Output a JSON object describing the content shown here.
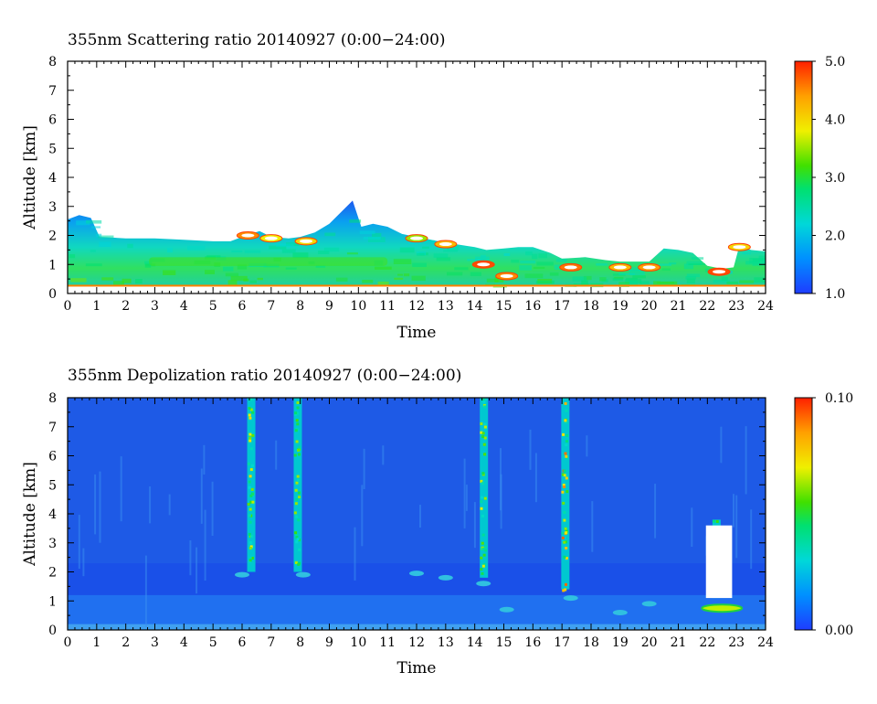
{
  "chart_data": [
    {
      "type": "heatmap",
      "title": "355nm Scattering ratio  20140927 (0:00−24:00)",
      "xlabel": "Time",
      "ylabel": "Altitude [km]",
      "xlim": [
        0,
        24
      ],
      "ylim": [
        0,
        8
      ],
      "x_ticks": [
        "0",
        "1",
        "2",
        "3",
        "4",
        "5",
        "6",
        "7",
        "8",
        "9",
        "10",
        "11",
        "12",
        "13",
        "14",
        "15",
        "16",
        "17",
        "18",
        "19",
        "20",
        "21",
        "22",
        "23",
        "24"
      ],
      "y_ticks": [
        "0",
        "1",
        "2",
        "3",
        "4",
        "5",
        "6",
        "7",
        "8"
      ],
      "colorbar": {
        "range": [
          1.0,
          5.0
        ],
        "ticks": [
          "1.0",
          "2.0",
          "3.0",
          "4.0",
          "5.0"
        ]
      },
      "colors": {
        "low": "#1e3cff",
        "mid": "#00e000",
        "high": "#ff2000"
      },
      "top_of_signal_km": [
        [
          0.0,
          2.55
        ],
        [
          0.4,
          2.7
        ],
        [
          0.8,
          2.6
        ],
        [
          1.1,
          1.95
        ],
        [
          2.0,
          1.9
        ],
        [
          3.0,
          1.9
        ],
        [
          4.0,
          1.85
        ],
        [
          5.0,
          1.8
        ],
        [
          5.6,
          1.8
        ],
        [
          6.0,
          1.95
        ],
        [
          6.6,
          2.15
        ],
        [
          7.0,
          1.95
        ],
        [
          7.6,
          1.9
        ],
        [
          8.0,
          1.95
        ],
        [
          8.5,
          2.1
        ],
        [
          9.0,
          2.4
        ],
        [
          9.4,
          2.8
        ],
        [
          9.8,
          3.2
        ],
        [
          10.1,
          2.3
        ],
        [
          10.5,
          2.4
        ],
        [
          11.0,
          2.3
        ],
        [
          11.5,
          2.05
        ],
        [
          12.0,
          1.95
        ],
        [
          13.0,
          1.75
        ],
        [
          14.0,
          1.6
        ],
        [
          14.4,
          1.5
        ],
        [
          15.0,
          1.55
        ],
        [
          15.5,
          1.6
        ],
        [
          16.0,
          1.6
        ],
        [
          16.6,
          1.4
        ],
        [
          17.0,
          1.2
        ],
        [
          17.8,
          1.25
        ],
        [
          18.5,
          1.15
        ],
        [
          19.0,
          1.1
        ],
        [
          20.0,
          1.1
        ],
        [
          20.5,
          1.55
        ],
        [
          21.0,
          1.5
        ],
        [
          21.5,
          1.4
        ],
        [
          22.0,
          0.95
        ],
        [
          22.5,
          0.85
        ],
        [
          22.9,
          0.9
        ],
        [
          23.1,
          1.65
        ],
        [
          23.5,
          1.5
        ],
        [
          24.0,
          1.45
        ]
      ],
      "features": [
        {
          "t": 6.2,
          "alt": 2.0,
          "value": 4.5
        },
        {
          "t": 7.0,
          "alt": 1.9,
          "value": 3.8
        },
        {
          "t": 8.2,
          "alt": 1.8,
          "value": 4.0
        },
        {
          "t": 12.0,
          "alt": 1.9,
          "value": 3.5
        },
        {
          "t": 13.0,
          "alt": 1.7,
          "value": 4.2
        },
        {
          "t": 14.3,
          "alt": 1.0,
          "value": 4.8
        },
        {
          "t": 15.1,
          "alt": 0.6,
          "value": 4.5
        },
        {
          "t": 17.3,
          "alt": 0.9,
          "value": 4.6
        },
        {
          "t": 19.0,
          "alt": 0.9,
          "value": 4.2
        },
        {
          "t": 20.0,
          "alt": 0.9,
          "value": 4.4
        },
        {
          "t": 22.4,
          "alt": 0.75,
          "value": 4.8
        },
        {
          "t": 23.1,
          "alt": 1.6,
          "value": 4.0
        }
      ]
    },
    {
      "type": "heatmap",
      "title": "355nm Depolization ratio  20140927 (0:00−24:00)",
      "xlabel": "Time",
      "ylabel": "Altitude [km]",
      "xlim": [
        0,
        24
      ],
      "ylim": [
        0,
        8
      ],
      "x_ticks": [
        "0",
        "1",
        "2",
        "3",
        "4",
        "5",
        "6",
        "7",
        "8",
        "9",
        "10",
        "11",
        "12",
        "13",
        "14",
        "15",
        "16",
        "17",
        "18",
        "19",
        "20",
        "21",
        "22",
        "23",
        "24"
      ],
      "y_ticks": [
        "0",
        "1",
        "2",
        "3",
        "4",
        "5",
        "6",
        "7",
        "8"
      ],
      "colorbar": {
        "range": [
          0.0,
          0.1
        ],
        "ticks": [
          "0.00",
          "0.10"
        ]
      },
      "colors": {
        "background": "#1e5ae6",
        "low": "#1e3cff",
        "mid": "#00e000",
        "high": "#ff2000"
      },
      "columns": [
        {
          "t": 6.3,
          "from_km": 2.0,
          "to_km": 8.0,
          "value": 0.07
        },
        {
          "t": 7.9,
          "from_km": 2.0,
          "to_km": 8.0,
          "value": 0.05
        },
        {
          "t": 14.3,
          "from_km": 1.8,
          "to_km": 8.0,
          "value": 0.06
        },
        {
          "t": 17.1,
          "from_km": 1.4,
          "to_km": 8.0,
          "value": 0.09
        },
        {
          "t": 22.3,
          "from_km": 1.1,
          "to_km": 3.8,
          "value": 0.1
        }
      ],
      "white_region": {
        "t_start": 21.95,
        "t_end": 22.85,
        "from_km": 1.1,
        "to_km": 3.6
      }
    }
  ]
}
